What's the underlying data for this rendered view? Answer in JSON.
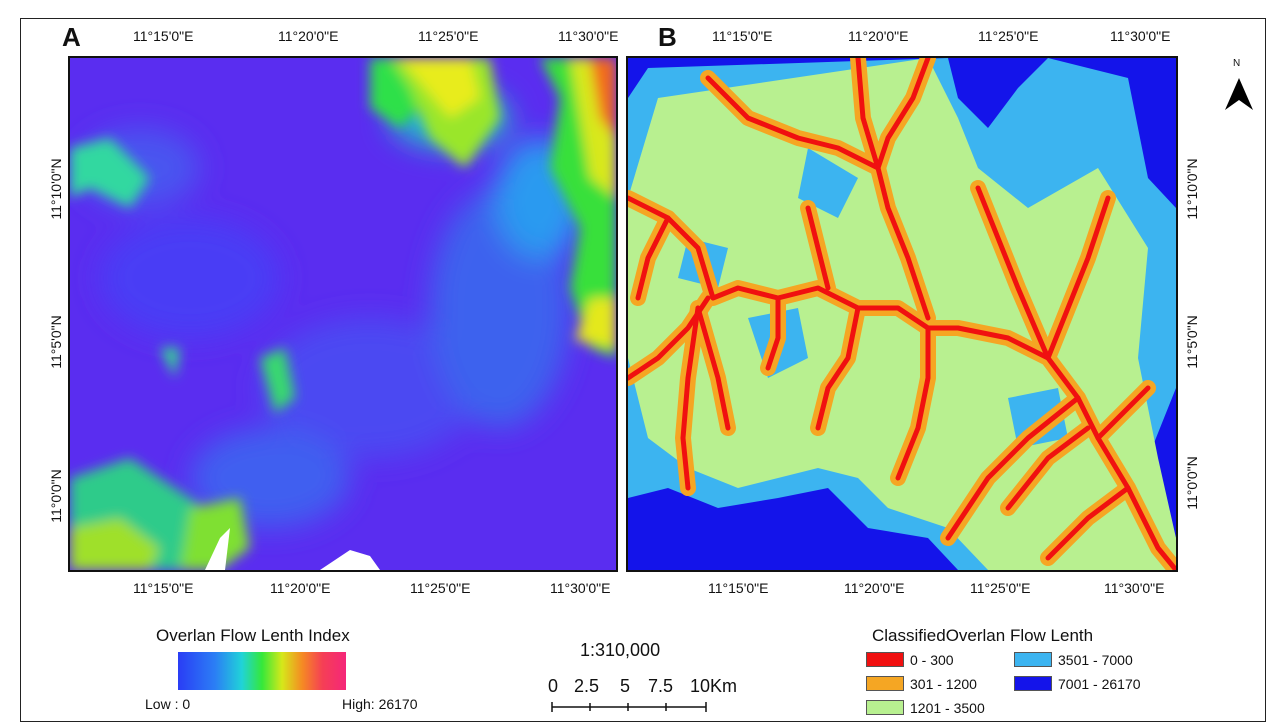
{
  "panelA": {
    "letter": "A",
    "top_ticks": [
      "11°15'0\"E",
      "11°20'0\"E",
      "11°25'0\"E",
      "11°30'0\"E"
    ],
    "bottom_ticks": [
      "11°15'0\"E",
      "11°20'0\"E",
      "11°25'0\"E",
      "11°30'0\"E"
    ],
    "left_ticks": [
      "11°10'0\"N",
      "11°5'0\"N",
      "11°0'0\"N"
    ]
  },
  "panelB": {
    "letter": "B",
    "top_ticks": [
      "11°15'0\"E",
      "11°20'0\"E",
      "11°25'0\"E",
      "11°30'0\"E"
    ],
    "bottom_ticks": [
      "11°15'0\"E",
      "11°20'0\"E",
      "11°25'0\"E",
      "11°30'0\"E"
    ],
    "right_ticks": [
      "11°10'0\"N",
      "11°5'0\"N",
      "11°0'0\"N"
    ]
  },
  "north": {
    "label": "N",
    "icon": "north-arrow-icon"
  },
  "legendA": {
    "title": "Overlan Flow Lenth Index",
    "low": "Low : 0",
    "high": "High: 26170"
  },
  "scale": {
    "ratio": "1:310,000",
    "labels": [
      "0",
      "2.5",
      "5",
      "7.5",
      "10Km"
    ]
  },
  "legendB": {
    "title": "ClassifiedOverlan Flow Lenth",
    "classes": [
      {
        "label": "0 - 300",
        "color": "#f01010"
      },
      {
        "label": "301 - 1200",
        "color": "#f5a623"
      },
      {
        "label": "1201 - 3500",
        "color": "#b8f090"
      },
      {
        "label": "3501 - 7000",
        "color": "#3cb4f0"
      },
      {
        "label": "7001 - 26170",
        "color": "#1414ea"
      }
    ]
  }
}
